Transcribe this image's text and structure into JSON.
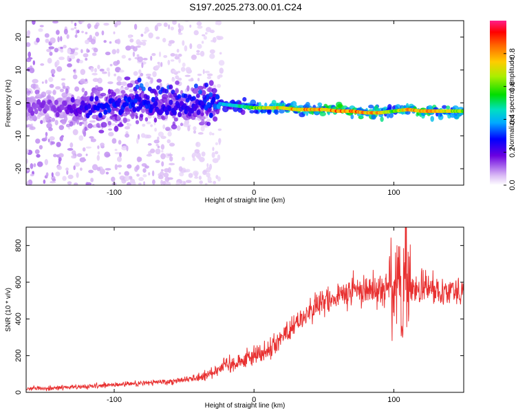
{
  "title": "S197.2025.273.00.01.C24",
  "colors": {
    "signal": "#e83030",
    "axis": "#000000",
    "background": "#ffffff"
  },
  "chart_data": [
    {
      "type": "heatmap",
      "name": "spectrogram",
      "xlabel": "Height of straight line (km)",
      "ylabel": "Frequency (Hz)",
      "xlim": [
        -163,
        150
      ],
      "ylim": [
        -25,
        25
      ],
      "xticks": [
        -100,
        0,
        100
      ],
      "yticks": [
        -20,
        -10,
        0,
        10,
        20
      ],
      "xtick_labels": [
        "-100",
        "0",
        "100"
      ],
      "ytick_labels": [
        "-20",
        "-10",
        "0",
        "10",
        "20"
      ],
      "colorbar": {
        "label": "Normalized spectral amplitude",
        "range": [
          0,
          1
        ],
        "ticks": [
          0.0,
          0.2,
          0.4,
          0.6,
          0.8
        ],
        "tick_labels": [
          "0.0",
          "0.2",
          "0.4",
          "0.6",
          "0.8"
        ]
      },
      "ridge": {
        "x": [
          -163,
          -140,
          -120,
          -100,
          -80,
          -60,
          -40,
          -28,
          -20,
          -10,
          0,
          10,
          20,
          30,
          40,
          50,
          60,
          70,
          80,
          90,
          100,
          110,
          120,
          130,
          140,
          150
        ],
        "freq": [
          -1,
          -1.5,
          -1.5,
          -1,
          0,
          -1.5,
          -1.5,
          0,
          -0.5,
          -1,
          -1.5,
          -1.5,
          -1.5,
          -2,
          -2,
          -2,
          -2.5,
          -2.5,
          -3,
          -3,
          -2.5,
          -2,
          -2.5,
          -2.5,
          -2.5,
          -2.5
        ],
        "amplitude": [
          0.15,
          0.15,
          0.25,
          0.3,
          0.3,
          0.25,
          0.25,
          0.35,
          0.45,
          0.5,
          0.65,
          0.75,
          0.8,
          0.85,
          0.85,
          0.85,
          0.9,
          0.9,
          0.85,
          0.8,
          0.6,
          0.85,
          0.85,
          0.8,
          0.75,
          0.7
        ]
      }
    },
    {
      "type": "line",
      "name": "snr",
      "xlabel": "Height of straight line (km)",
      "ylabel": "SNR (10 * v/v)",
      "xlim": [
        -163,
        150
      ],
      "ylim": [
        0,
        900
      ],
      "xticks": [
        -100,
        0,
        100
      ],
      "yticks": [
        0,
        200,
        400,
        600,
        800
      ],
      "xtick_labels": [
        "-100",
        "0",
        "100"
      ],
      "ytick_labels": [
        "0",
        "200",
        "400",
        "600",
        "800"
      ],
      "series": [
        {
          "name": "SNR",
          "x": [
            -163,
            -140,
            -120,
            -100,
            -80,
            -60,
            -40,
            -30,
            -20,
            -10,
            0,
            10,
            20,
            30,
            40,
            50,
            60,
            70,
            80,
            90,
            100,
            104,
            106,
            108,
            110,
            120,
            130,
            140,
            150
          ],
          "y": [
            20,
            25,
            30,
            40,
            50,
            60,
            80,
            110,
            150,
            170,
            200,
            230,
            300,
            380,
            440,
            490,
            520,
            550,
            560,
            570,
            580,
            560,
            300,
            820,
            560,
            560,
            565,
            560,
            565
          ]
        }
      ]
    }
  ]
}
